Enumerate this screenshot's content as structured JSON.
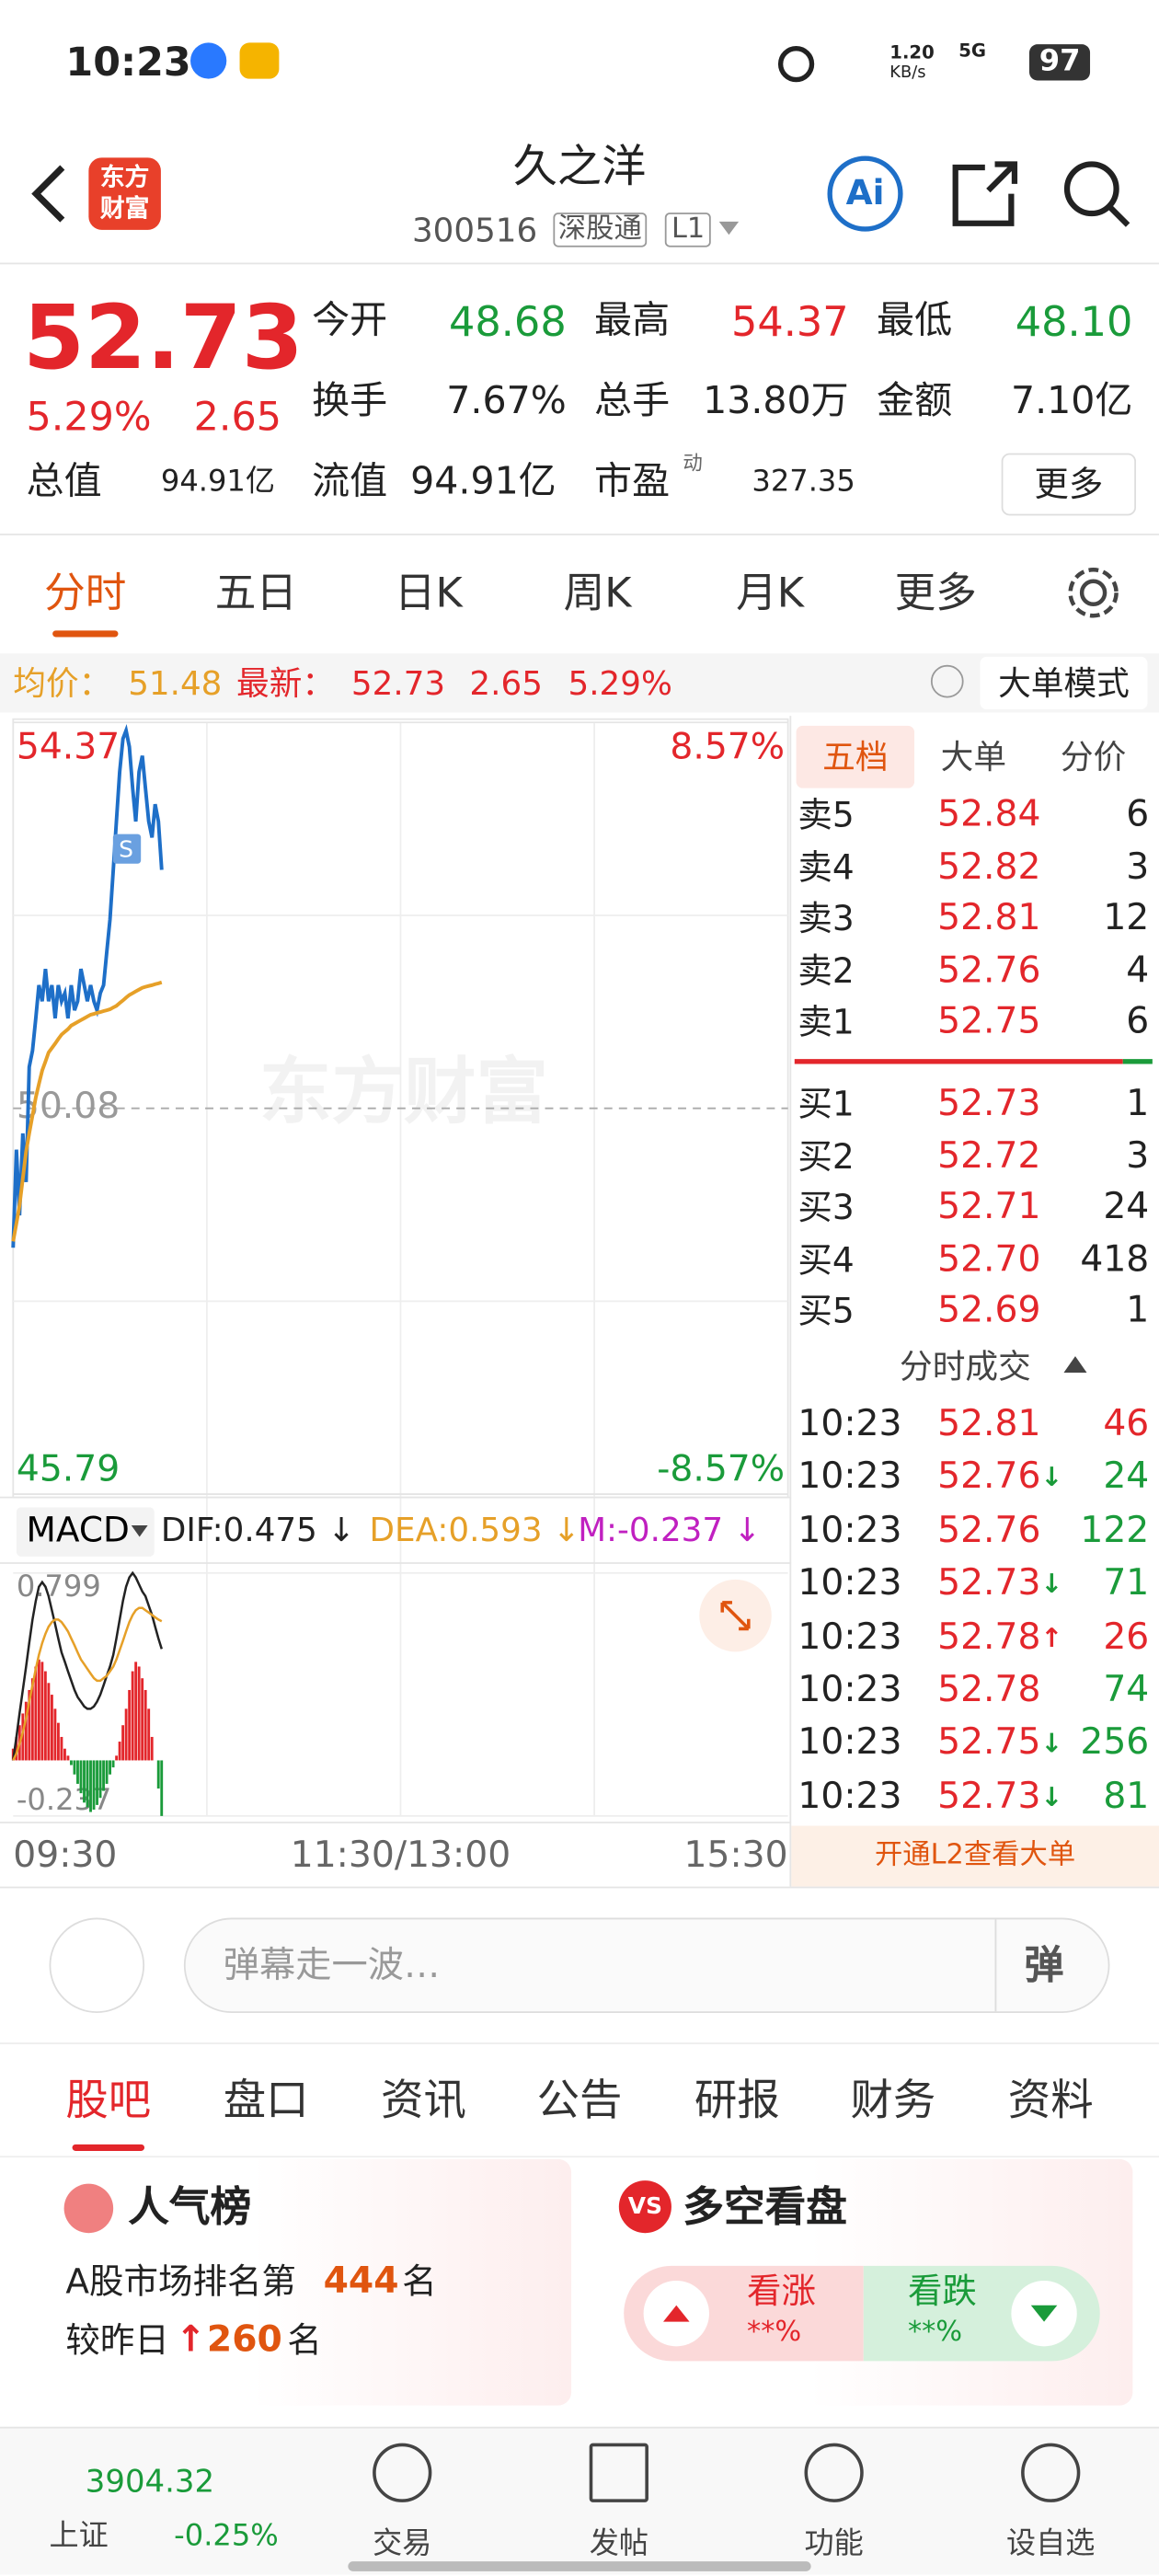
{
  "status_bar": {
    "time": "10:23",
    "speed": "1.20",
    "speed_unit": "KB/s",
    "network": "5G",
    "battery": "97"
  },
  "header": {
    "logo": [
      "东方",
      "财富"
    ],
    "name": "久之洋",
    "code": "300516",
    "tags": [
      "深股通",
      "L1"
    ],
    "ai": "Ai"
  },
  "quote": {
    "price": "52.73",
    "pct": "5.29%",
    "change": "2.65",
    "rows": [
      [
        {
          "label": "今开",
          "value": "48.68",
          "color": "#1a9b3a"
        },
        {
          "label": "最高",
          "value": "54.37",
          "color": "#e3262b"
        },
        {
          "label": "最低",
          "value": "48.10",
          "color": "#1a9b3a"
        }
      ],
      [
        {
          "label": "换手",
          "value": "7.67%",
          "color": "#222222"
        },
        {
          "label": "总手",
          "value": "13.80万",
          "color": "#222222"
        },
        {
          "label": "金额",
          "value": "7.10亿",
          "color": "#222222"
        }
      ]
    ],
    "cap": {
      "label": "总值",
      "value": "94.91亿"
    },
    "float": {
      "label": "流值",
      "value": "94.91亿"
    },
    "pe": {
      "label": "市盈",
      "sup": "动",
      "value": "327.35"
    },
    "more": "更多"
  },
  "chart_tabs": {
    "items": [
      "分时",
      "五日",
      "日K",
      "周K",
      "月K",
      "更多"
    ],
    "active": 0
  },
  "info_bar": {
    "avg_label": "均价：",
    "avg": "51.48",
    "latest_label": "最新：",
    "latest": "52.73",
    "change": "2.65",
    "pct": "5.29%",
    "mode": "大单模式"
  },
  "chart_data": [
    {
      "type": "line",
      "xlim": [
        0,
        240
      ],
      "xticks": [
        {
          "value": 0,
          "label": "09:30"
        },
        {
          "value": 120,
          "label": "11:30/13:00"
        },
        {
          "value": 240,
          "label": "15:30"
        }
      ],
      "ylim": [
        45.79,
        54.37
      ],
      "yticks": [
        45.79,
        50.08,
        54.37
      ],
      "y2lim": [
        -8.57,
        8.57
      ],
      "y2ticks": [
        {
          "value": -8.57,
          "label": "-8.57%"
        },
        {
          "value": 8.57,
          "label": "8.57%"
        }
      ],
      "up_color": "#e3262b",
      "down_color": "#1a9b3a",
      "watermark": "东方财富",
      "marker": "S",
      "series": [
        {
          "color": "#1e6fc8",
          "values": [
            48.53,
            49.62,
            48.89,
            49.8,
            49.26,
            50.54,
            50.72,
            51.08,
            51.45,
            51.27,
            51.63,
            51.27,
            51.45,
            51.08,
            51.45,
            51.27,
            51.36,
            51.08,
            51.45,
            51.17,
            51.27,
            51.63,
            51.45,
            51.27,
            51.45,
            51.27,
            51.17,
            51.36,
            51.45,
            51.81,
            52.18,
            52.73,
            53.27,
            53.82,
            54.19,
            54.28,
            54.1,
            53.64,
            53.27,
            53.82,
            54.0,
            53.64,
            53.27,
            53.09,
            53.46,
            53.27,
            52.73
          ]
        },
        {
          "color": "#e6a028",
          "values": [
            48.6,
            48.8,
            49.0,
            49.3,
            49.6,
            49.8,
            50.0,
            50.2,
            50.35,
            50.5,
            50.6,
            50.7,
            50.75,
            50.8,
            50.85,
            50.9,
            50.93,
            50.96,
            51.0,
            51.02,
            51.04,
            51.06,
            51.08,
            51.1,
            51.12,
            51.13,
            51.14,
            51.15,
            51.16,
            51.17,
            51.18,
            51.2,
            51.22,
            51.25,
            51.28,
            51.31,
            51.34,
            51.36,
            51.38,
            51.4,
            51.42,
            51.43,
            51.44,
            51.45,
            51.46,
            51.47,
            51.48
          ]
        }
      ]
    },
    {
      "type": "macd",
      "title": "MACD",
      "xlim": [
        0,
        240
      ],
      "ylim": [
        -0.237,
        0.799
      ],
      "yticks": [
        -0.237,
        0.799
      ],
      "up_color": "#e3262b",
      "down_color": "#1a9b3a",
      "series": [
        {
          "name": "DIF:0.475 ↓",
          "color": "#222222",
          "values": [
            0.0,
            0.1,
            0.2,
            0.3,
            0.4,
            0.5,
            0.6,
            0.68,
            0.74,
            0.76,
            0.74,
            0.7,
            0.64,
            0.58,
            0.52,
            0.46,
            0.42,
            0.38,
            0.34,
            0.3,
            0.27,
            0.25,
            0.23,
            0.22,
            0.22,
            0.23,
            0.25,
            0.28,
            0.32,
            0.36,
            0.4,
            0.45,
            0.52,
            0.6,
            0.68,
            0.74,
            0.78,
            0.799,
            0.78,
            0.75,
            0.72,
            0.7,
            0.66,
            0.62,
            0.57,
            0.52,
            0.475
          ]
        },
        {
          "name": "DEA:0.593 ↓",
          "color": "#e6a028",
          "values": [
            0.0,
            0.03,
            0.07,
            0.12,
            0.18,
            0.25,
            0.32,
            0.39,
            0.45,
            0.5,
            0.54,
            0.57,
            0.59,
            0.6,
            0.6,
            0.59,
            0.57,
            0.55,
            0.52,
            0.49,
            0.46,
            0.43,
            0.41,
            0.39,
            0.37,
            0.35,
            0.34,
            0.34,
            0.35,
            0.36,
            0.38,
            0.4,
            0.43,
            0.47,
            0.51,
            0.55,
            0.59,
            0.62,
            0.64,
            0.65,
            0.65,
            0.64,
            0.63,
            0.62,
            0.61,
            0.6,
            0.593
          ]
        },
        {
          "name": "M:-0.237 ↓",
          "color": "#c020c0",
          "values": [
            0.05,
            0.1,
            0.15,
            0.2,
            0.25,
            0.3,
            0.35,
            0.4,
            0.43,
            0.42,
            0.38,
            0.33,
            0.28,
            0.22,
            0.16,
            0.1,
            0.05,
            0.02,
            -0.02,
            -0.06,
            -0.1,
            -0.14,
            -0.18,
            -0.2,
            -0.22,
            -0.21,
            -0.19,
            -0.16,
            -0.13,
            -0.1,
            -0.06,
            -0.03,
            0.02,
            0.08,
            0.15,
            0.22,
            0.3,
            0.38,
            0.42,
            0.4,
            0.35,
            0.3,
            0.22,
            0.1,
            0.0,
            -0.12,
            -0.237
          ]
        }
      ]
    }
  ],
  "order_book": {
    "tabs": [
      "五档",
      "大单",
      "分价"
    ],
    "asks": [
      {
        "label": "卖5",
        "price": "52.84",
        "volume": "6"
      },
      {
        "label": "卖4",
        "price": "52.82",
        "volume": "3"
      },
      {
        "label": "卖3",
        "price": "52.81",
        "volume": "12"
      },
      {
        "label": "卖2",
        "price": "52.76",
        "volume": "4"
      },
      {
        "label": "卖1",
        "price": "52.75",
        "volume": "6"
      }
    ],
    "bids": [
      {
        "label": "买1",
        "price": "52.73",
        "volume": "1"
      },
      {
        "label": "买2",
        "price": "52.72",
        "volume": "3"
      },
      {
        "label": "买3",
        "price": "52.71",
        "volume": "24"
      },
      {
        "label": "买4",
        "price": "52.70",
        "volume": "418"
      },
      {
        "label": "买5",
        "price": "52.69",
        "volume": "1"
      }
    ]
  },
  "trades": {
    "title": "分时成交",
    "rows": [
      {
        "time": "10:23",
        "price": "52.81",
        "volume": "46",
        "color": "#e3262b"
      },
      {
        "time": "10:23",
        "price": "52.76",
        "dir": "↓",
        "volume": "24",
        "color": "#1a9b3a"
      },
      {
        "time": "10:23",
        "price": "52.76",
        "volume": "122",
        "color": "#1a9b3a"
      },
      {
        "time": "10:23",
        "price": "52.73",
        "dir": "↓",
        "volume": "71",
        "color": "#1a9b3a"
      },
      {
        "time": "10:23",
        "price": "52.78",
        "dir": "↑",
        "volume": "26",
        "color": "#e3262b"
      },
      {
        "time": "10:23",
        "price": "52.78",
        "volume": "74",
        "color": "#1a9b3a"
      },
      {
        "time": "10:23",
        "price": "52.75",
        "dir": "↓",
        "volume": "256",
        "color": "#1a9b3a"
      },
      {
        "time": "10:23",
        "price": "52.73",
        "dir": "↓",
        "volume": "81",
        "color": "#1a9b3a"
      }
    ]
  },
  "l2_banner": "开通L2查看大单",
  "comment": {
    "placeholder": "弹幕走一波…",
    "button": "弹"
  },
  "tabs": {
    "items": [
      "股吧",
      "盘口",
      "资讯",
      "公告",
      "研报",
      "财务",
      "资料"
    ],
    "active": 0
  },
  "cards": {
    "popularity": {
      "title": "人气榜",
      "rank_prefix": "A股市场排名第",
      "rank": "444",
      "rank_suffix": "名",
      "change_prefix": "较昨日",
      "change_arrow": "↑",
      "change": "260",
      "change_suffix": "名"
    },
    "sentiment": {
      "badge": "VS",
      "title": "多空看盘",
      "bull": "看涨",
      "bull_pct": "**%",
      "bear": "看跌",
      "bear_pct": "**%"
    }
  },
  "bottom_nav": {
    "index_value": "3904.32",
    "index_name": "上证",
    "index_change": "-0.25%",
    "items": [
      "交易",
      "发帖",
      "功能",
      "设自选"
    ]
  }
}
